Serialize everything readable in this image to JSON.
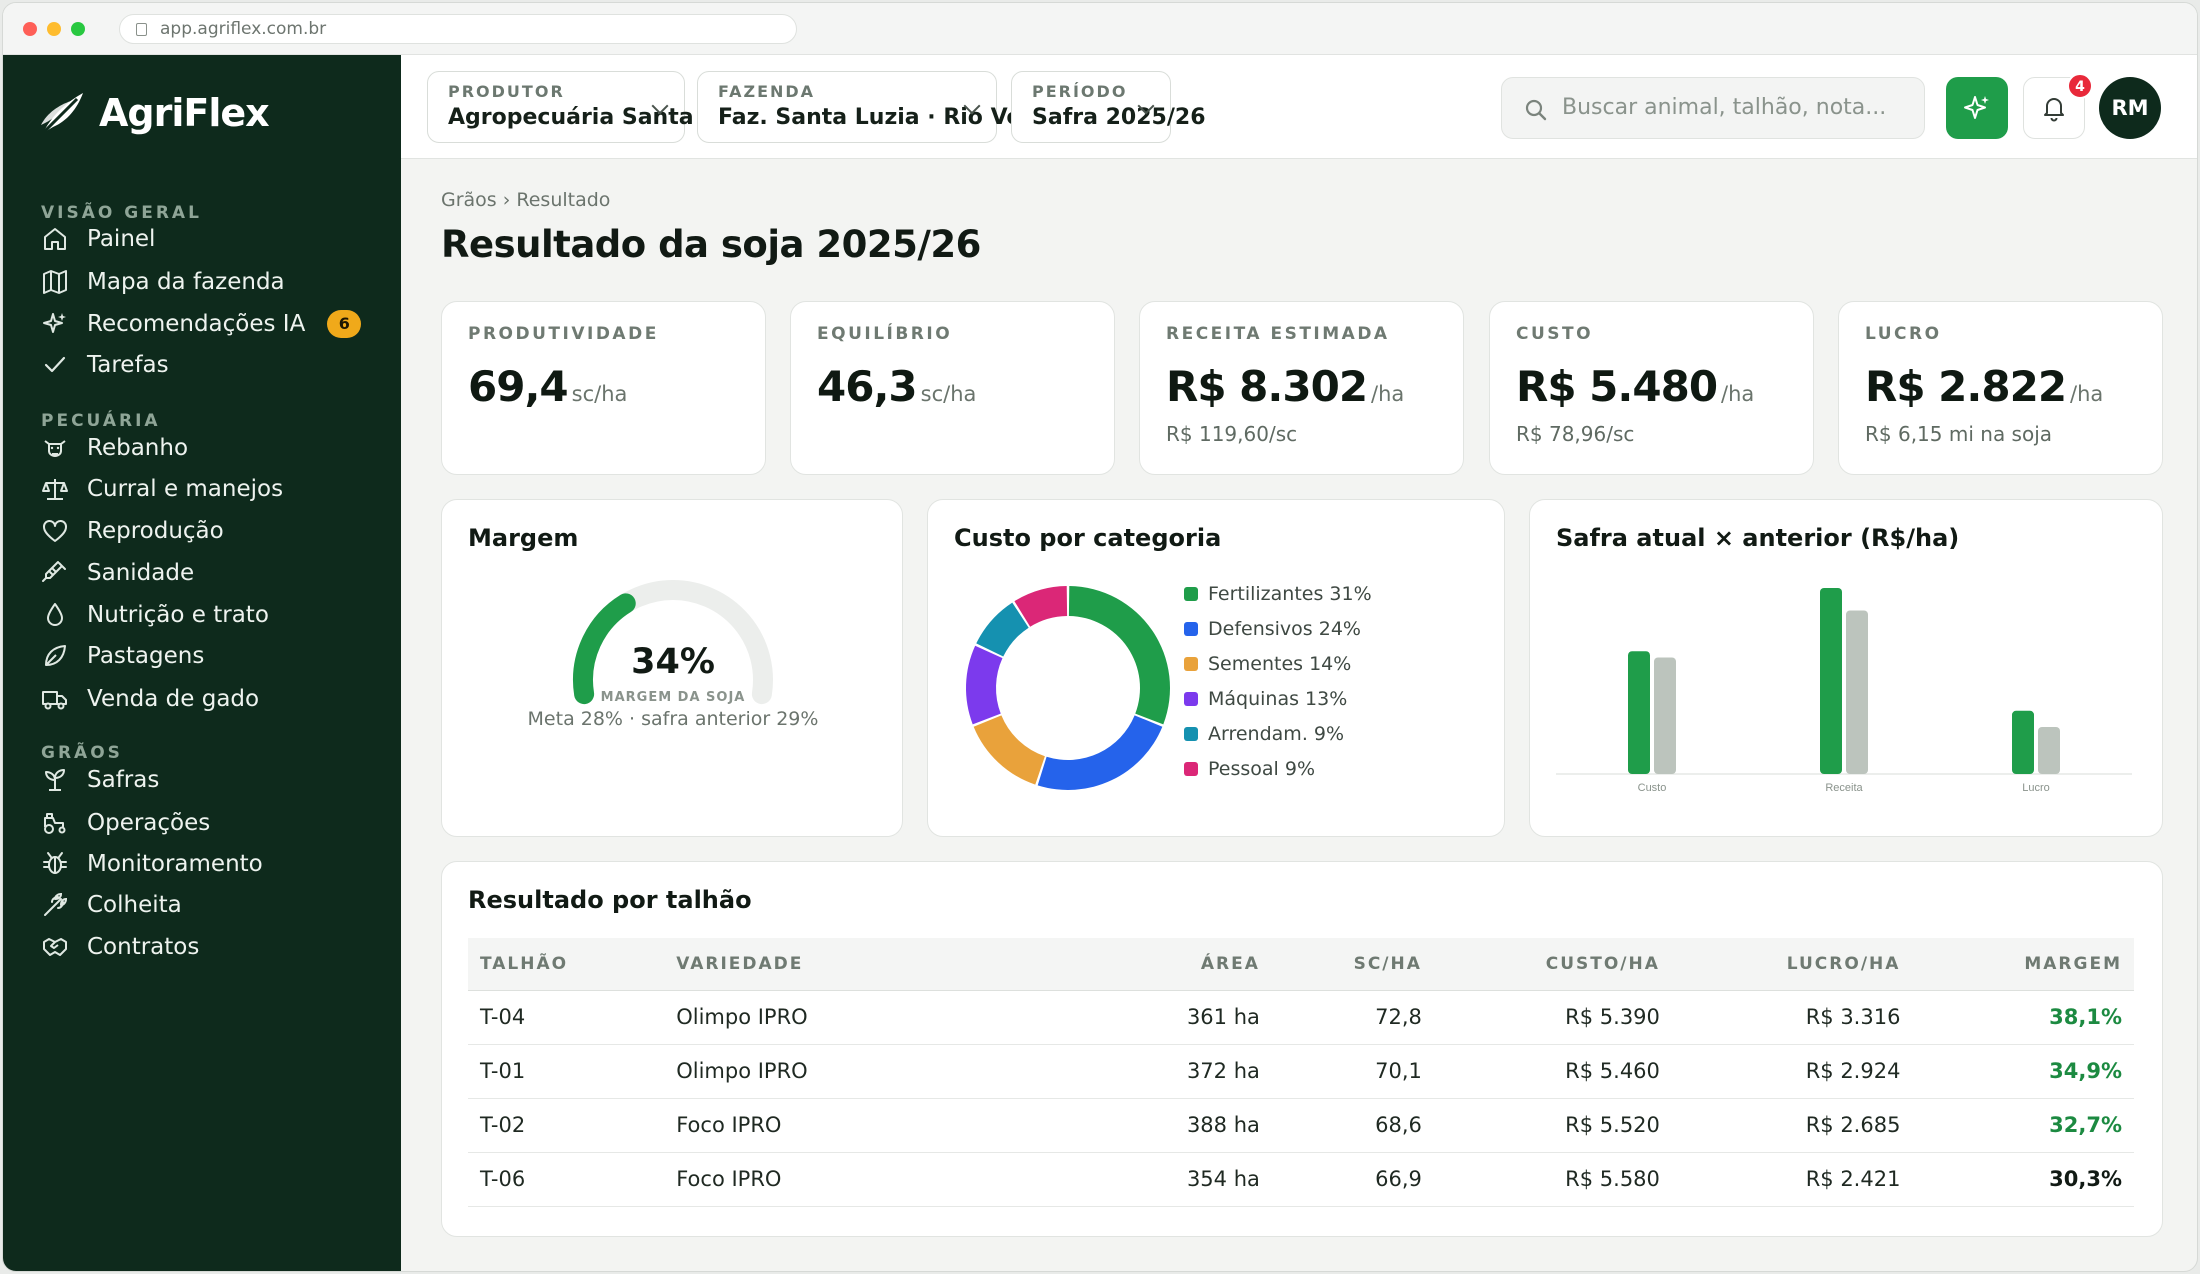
{
  "browser": {
    "url": "app.agriflex.com.br"
  },
  "app": {
    "name": "AgriFlex"
  },
  "sidebar": {
    "sections": [
      {
        "label": "VISÃO GERAL",
        "items": [
          {
            "label": "Painel",
            "icon": "home-icon"
          },
          {
            "label": "Mapa da fazenda",
            "icon": "map-icon"
          },
          {
            "label": "Recomendações IA",
            "icon": "sparkle-icon",
            "badge": "6"
          },
          {
            "label": "Tarefas",
            "icon": "check-icon"
          }
        ]
      },
      {
        "label": "PECUÁRIA",
        "items": [
          {
            "label": "Rebanho",
            "icon": "cow-icon"
          },
          {
            "label": "Curral e manejos",
            "icon": "scale-icon"
          },
          {
            "label": "Reprodução",
            "icon": "heart-icon"
          },
          {
            "label": "Sanidade",
            "icon": "syringe-icon"
          },
          {
            "label": "Nutrição e trato",
            "icon": "drop-icon"
          },
          {
            "label": "Pastagens",
            "icon": "leaf-icon"
          },
          {
            "label": "Venda de gado",
            "icon": "truck-icon"
          }
        ]
      },
      {
        "label": "GRÃOS",
        "items": [
          {
            "label": "Safras",
            "icon": "sprout-icon"
          },
          {
            "label": "Operações",
            "icon": "tractor-icon"
          },
          {
            "label": "Monitoramento",
            "icon": "bug-icon"
          },
          {
            "label": "Colheita",
            "icon": "wheat-icon"
          },
          {
            "label": "Contratos",
            "icon": "handshake-icon"
          }
        ]
      }
    ]
  },
  "topbar": {
    "produtor": {
      "label": "PRODUTOR",
      "value": "Agropecuária Santa Luzia"
    },
    "fazenda": {
      "label": "FAZENDA",
      "value": "Faz. Santa Luzia · Rio Verde/GO"
    },
    "periodo": {
      "label": "PERÍODO",
      "value": "Safra 2025/26"
    },
    "search_placeholder": "Buscar animal, talhão, nota...",
    "notifications": "4",
    "avatar": "RM"
  },
  "page": {
    "breadcrumb": "Grãos › Resultado",
    "title": "Resultado da soja 2025/26"
  },
  "kpis": [
    {
      "label": "PRODUTIVIDADE",
      "value": "69,4",
      "unit": "sc/ha",
      "sub": ""
    },
    {
      "label": "EQUILÍBRIO",
      "value": "46,3",
      "unit": "sc/ha",
      "sub": ""
    },
    {
      "label": "RECEITA ESTIMADA",
      "value": "R$ 8.302",
      "unit": "/ha",
      "sub": "R$ 119,60/sc"
    },
    {
      "label": "CUSTO",
      "value": "R$ 5.480",
      "unit": "/ha",
      "sub": "R$ 78,96/sc"
    },
    {
      "label": "LUCRO",
      "value": "R$ 2.822",
      "unit": "/ha",
      "sub": "R$ 6,15 mi na soja"
    }
  ],
  "margem": {
    "title": "Margem",
    "value": "34%",
    "fraction": 0.34,
    "caption": "MARGEM DA SOJA",
    "note": "Meta 28% · safra anterior 29%",
    "color": "#1f9d4a"
  },
  "chart_data": [
    {
      "type": "pie",
      "title": "Custo por categoria",
      "donut": true,
      "categories": [
        "Fertilizantes",
        "Defensivos",
        "Sementes",
        "Máquinas",
        "Arrendam.",
        "Pessoal"
      ],
      "values": [
        31,
        24,
        14,
        13,
        9,
        9
      ],
      "legend_labels": [
        "Fertilizantes 31%",
        "Defensivos 24%",
        "Sementes 14%",
        "Máquinas 13%",
        "Arrendam. 9%",
        "Pessoal 9%"
      ],
      "colors": [
        "#1f9d4a",
        "#2563eb",
        "#e9a23b",
        "#7c3aed",
        "#1591b0",
        "#db2777"
      ],
      "legend": "right"
    },
    {
      "type": "bar",
      "title": "Safra atual × anterior (R$/ha)",
      "categories": [
        "Custo",
        "Receita",
        "Lucro"
      ],
      "series": [
        {
          "values": [
            5480,
            8302,
            2822
          ],
          "color": "#1f9d4a"
        },
        {
          "values": [
            5200,
            7300,
            2100
          ],
          "color": "#bcc4bd"
        }
      ],
      "ylim": [
        0,
        8302
      ],
      "grid": false
    }
  ],
  "table": {
    "title": "Resultado por talhão",
    "columns": [
      "TALHÃO",
      "VARIEDADE",
      "ÁREA",
      "SC/HA",
      "CUSTO/HA",
      "LUCRO/HA",
      "MARGEM"
    ],
    "rows": [
      [
        "T-04",
        "Olimpo IPRO",
        "361 ha",
        "72,8",
        "R$ 5.390",
        "R$ 3.316",
        "38,1%"
      ],
      [
        "T-01",
        "Olimpo IPRO",
        "372 ha",
        "70,1",
        "R$ 5.460",
        "R$ 2.924",
        "34,9%"
      ],
      [
        "T-02",
        "Foco IPRO",
        "388 ha",
        "68,6",
        "R$ 5.520",
        "R$ 2.685",
        "32,7%"
      ],
      [
        "T-06",
        "Foco IPRO",
        "354 ha",
        "66,9",
        "R$ 5.580",
        "R$ 2.421",
        "30,3%"
      ]
    ],
    "margin_colors": [
      "#1c8a41",
      "#1c8a41",
      "#1c8a41",
      "#111a14"
    ]
  }
}
